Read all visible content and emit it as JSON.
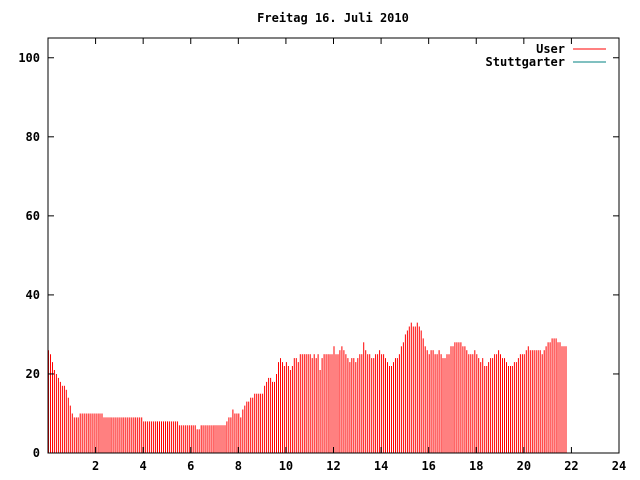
{
  "chart_data": {
    "type": "bar",
    "title": "Freitag 16. Juli 2010",
    "xlabel": "",
    "ylabel": "",
    "xlim": [
      0,
      24
    ],
    "ylim": [
      0,
      105
    ],
    "xticks": [
      2,
      4,
      6,
      8,
      10,
      12,
      14,
      16,
      18,
      20,
      22,
      24
    ],
    "yticks": [
      0,
      20,
      40,
      60,
      80,
      100
    ],
    "legend_position": "top-right",
    "series": [
      {
        "name": "User",
        "color": "#ff0000",
        "sample_interval_minutes": 5,
        "values": [
          26,
          25,
          23,
          21,
          20,
          19,
          18,
          17,
          17,
          16,
          14,
          12,
          10,
          9,
          9,
          9,
          10,
          10,
          10,
          10,
          10,
          10,
          10,
          10,
          10,
          10,
          10,
          10,
          9,
          9,
          9,
          9,
          9,
          9,
          9,
          9,
          9,
          9,
          9,
          9,
          9,
          9,
          9,
          9,
          9,
          9,
          9,
          9,
          8,
          8,
          8,
          8,
          8,
          8,
          8,
          8,
          8,
          8,
          8,
          8,
          8,
          8,
          8,
          8,
          8,
          8,
          7,
          7,
          7,
          7,
          7,
          7,
          7,
          7,
          7,
          6,
          6,
          7,
          7,
          7,
          7,
          7,
          7,
          7,
          7,
          7,
          7,
          7,
          7,
          7,
          8,
          9,
          9,
          11,
          10,
          10,
          10,
          9,
          11,
          12,
          13,
          13,
          14,
          14,
          15,
          15,
          15,
          15,
          15,
          17,
          18,
          19,
          19,
          18,
          18,
          20,
          23,
          24,
          23,
          22,
          23,
          22,
          21,
          22,
          24,
          24,
          23,
          25,
          25,
          25,
          25,
          25,
          25,
          24,
          25,
          24,
          25,
          21,
          24,
          25,
          25,
          25,
          25,
          25,
          27,
          25,
          25,
          26,
          27,
          26,
          25,
          24,
          23,
          24,
          24,
          23,
          24,
          25,
          25,
          28,
          26,
          25,
          25,
          24,
          24,
          25,
          25,
          26,
          25,
          25,
          24,
          23,
          22,
          22,
          23,
          24,
          24,
          25,
          27,
          28,
          30,
          31,
          32,
          33,
          32,
          32,
          33,
          32,
          31,
          29,
          27,
          26,
          25,
          26,
          26,
          25,
          25,
          26,
          25,
          24,
          24,
          25,
          25,
          27,
          27,
          28,
          28,
          28,
          28,
          27,
          27,
          26,
          25,
          25,
          25,
          26,
          25,
          24,
          23,
          24,
          22,
          22,
          23,
          24,
          24,
          25,
          25,
          26,
          25,
          24,
          24,
          23,
          22,
          22,
          22,
          23,
          23,
          24,
          25,
          25,
          25,
          26,
          27,
          26,
          26,
          26,
          26,
          26,
          26,
          25,
          26,
          27,
          28,
          28,
          29,
          29,
          29,
          28,
          28,
          27,
          27,
          27
        ]
      },
      {
        "name": "Stuttgarter",
        "color": "#008080",
        "values": []
      }
    ]
  }
}
